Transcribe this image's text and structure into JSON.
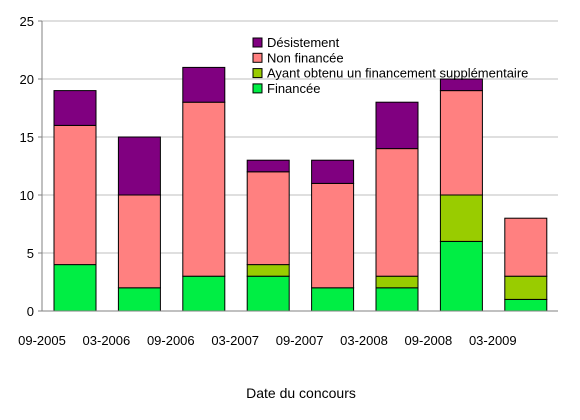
{
  "chart_data": {
    "type": "bar",
    "stacked": true,
    "categories": [
      "09-2005",
      "03-2006",
      "09-2006",
      "03-2007",
      "09-2007",
      "03-2008",
      "09-2008",
      "03-2009"
    ],
    "series": [
      {
        "name": "Financée",
        "color": "#00ee44",
        "values": [
          4,
          2,
          3,
          3,
          2,
          2,
          6,
          1
        ]
      },
      {
        "name": "Ayant obtenu un financement supplémentaire",
        "color": "#99cc00",
        "values": [
          0,
          0,
          0,
          1,
          0,
          1,
          4,
          2
        ]
      },
      {
        "name": "Non financée",
        "color": "#ff8080",
        "values": [
          12,
          8,
          15,
          8,
          9,
          11,
          9,
          5
        ]
      },
      {
        "name": "Désistement",
        "color": "#800080",
        "values": [
          3,
          5,
          3,
          1,
          2,
          4,
          1,
          0
        ]
      }
    ],
    "legend_order": [
      "Désistement",
      "Non financée",
      "Ayant obtenu un financement supplémentaire",
      "Financée"
    ],
    "xlabel": "Date du concours",
    "ylabel": "",
    "ylim": [
      0,
      25
    ],
    "yticks": [
      0,
      5,
      10,
      15,
      20,
      25
    ],
    "grid": true,
    "legend_position": "top-right"
  }
}
